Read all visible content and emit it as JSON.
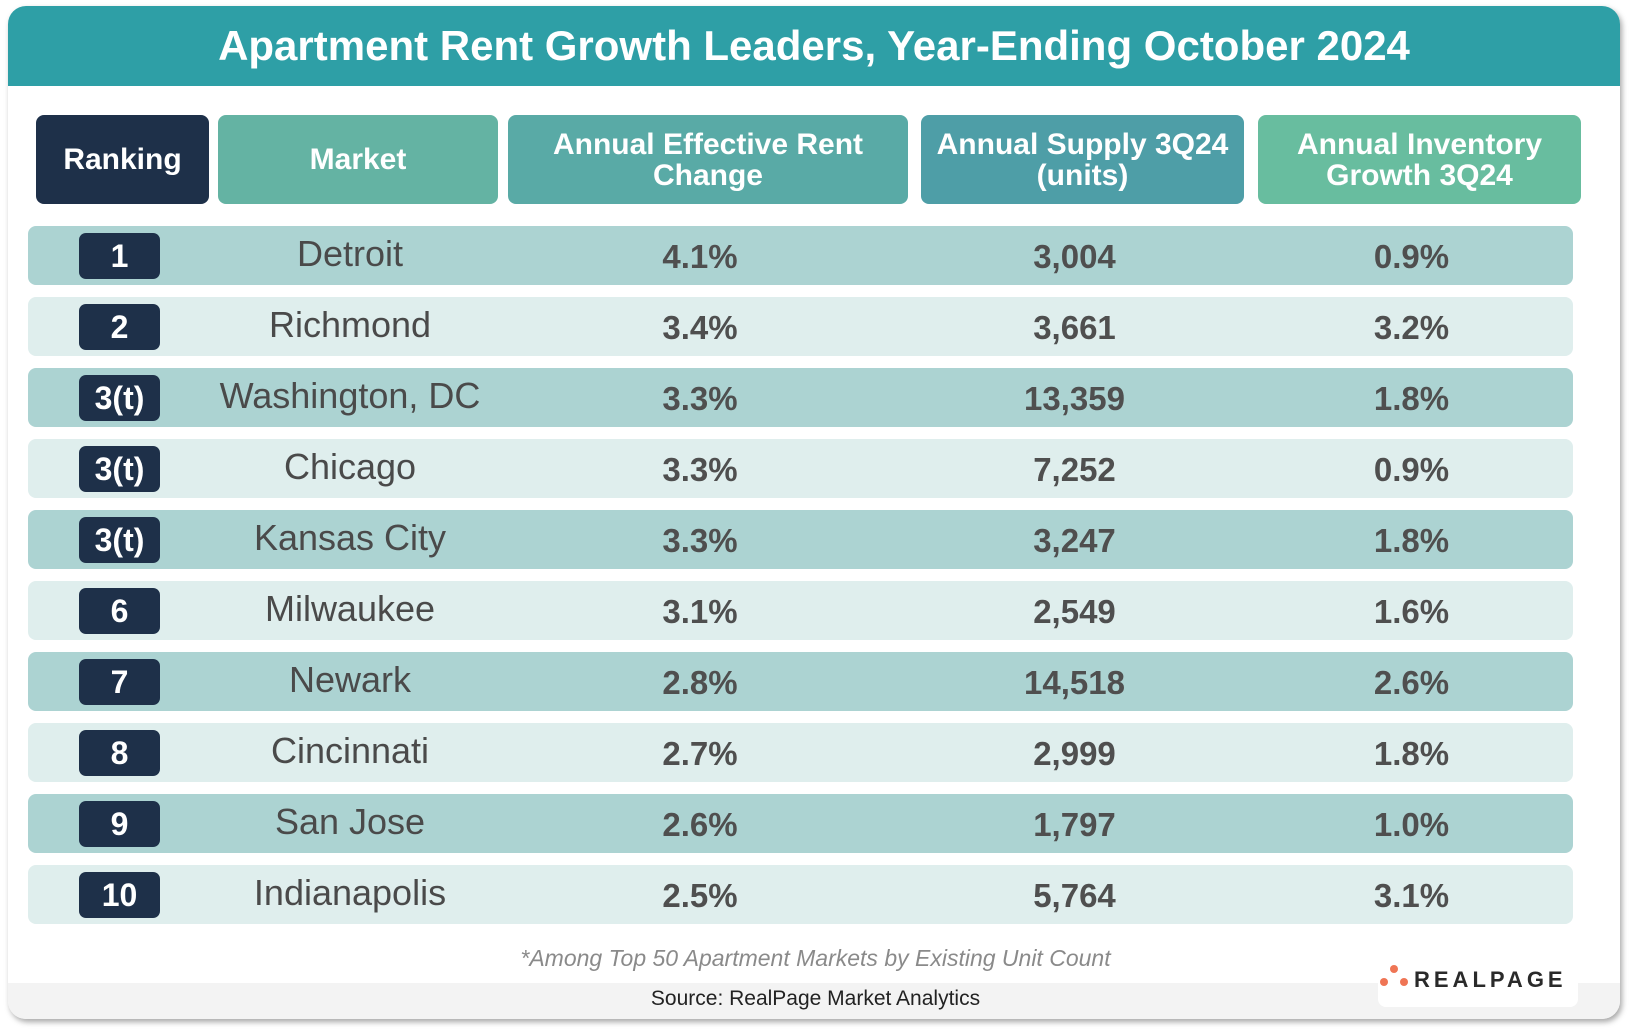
{
  "title": "Apartment Rent Growth Leaders, Year-Ending October 2024",
  "headers": [
    "Ranking",
    "Market",
    "Annual Effective Rent Change",
    "Annual Supply 3Q24 (units)",
    "Annual Inventory Growth 3Q24"
  ],
  "header_colors": [
    "#1e3049",
    "#64b3a3",
    "#59aaa6",
    "#4e9ea7",
    "#68bd9f"
  ],
  "rows": [
    {
      "rank": "1",
      "market": "Detroit",
      "rent_change": "4.1%",
      "supply": "3,004",
      "inventory_growth": "0.9%"
    },
    {
      "rank": "2",
      "market": "Richmond",
      "rent_change": "3.4%",
      "supply": "3,661",
      "inventory_growth": "3.2%"
    },
    {
      "rank": "3(t)",
      "market": "Washington, DC",
      "rent_change": "3.3%",
      "supply": "13,359",
      "inventory_growth": "1.8%"
    },
    {
      "rank": "3(t)",
      "market": "Chicago",
      "rent_change": "3.3%",
      "supply": "7,252",
      "inventory_growth": "0.9%"
    },
    {
      "rank": "3(t)",
      "market": "Kansas City",
      "rent_change": "3.3%",
      "supply": "3,247",
      "inventory_growth": "1.8%"
    },
    {
      "rank": "6",
      "market": "Milwaukee",
      "rent_change": "3.1%",
      "supply": "2,549",
      "inventory_growth": "1.6%"
    },
    {
      "rank": "7",
      "market": "Newark",
      "rent_change": "2.8%",
      "supply": "14,518",
      "inventory_growth": "2.6%"
    },
    {
      "rank": "8",
      "market": "Cincinnati",
      "rent_change": "2.7%",
      "supply": "2,999",
      "inventory_growth": "1.8%"
    },
    {
      "rank": "9",
      "market": "San Jose",
      "rent_change": "2.6%",
      "supply": "1,797",
      "inventory_growth": "1.0%"
    },
    {
      "rank": "10",
      "market": "Indianapolis",
      "rent_change": "2.5%",
      "supply": "5,764",
      "inventory_growth": "3.1%"
    }
  ],
  "footnote": "*Among Top 50 Apartment Markets by Existing Unit Count",
  "source": "Source: RealPage Market Analytics",
  "logo_text": "REALPAGE",
  "colors": {
    "title_bar": "#2e9fa6",
    "row_dark": "#acd3d2",
    "row_light": "#dfeeed",
    "badge": "#1e3049",
    "logo_dots": "#ef7555"
  }
}
